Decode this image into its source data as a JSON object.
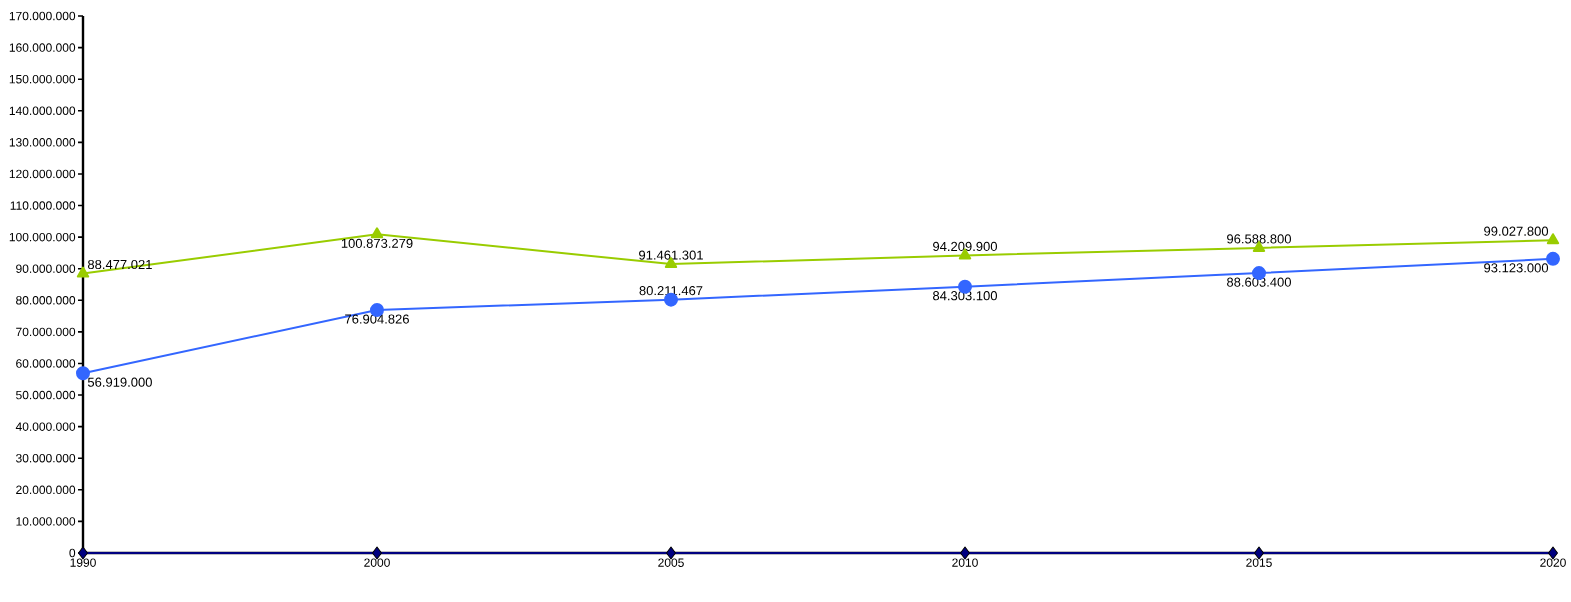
{
  "chart_data": {
    "type": "line",
    "categories": [
      "1990",
      "2000",
      "2005",
      "2010",
      "2015",
      "2020"
    ],
    "series": [
      {
        "color": "#99cc00",
        "marker": "triangle",
        "values": [
          88477021,
          100873279,
          91461301,
          94209900,
          96588800,
          99027800
        ],
        "value_labels": [
          "88.477.021",
          "100.873.279",
          "91.461.301",
          "94.209.900",
          "96.588.800",
          "99.027.800"
        ]
      },
      {
        "color": "#3366ff",
        "marker": "circle",
        "values": [
          56919000,
          76904826,
          80211467,
          84303100,
          88603400,
          93123000
        ],
        "value_labels": [
          "56.919.000",
          "76.904.826",
          "80.211.467",
          "84.303.100",
          "88.603.400",
          "93.123.000"
        ]
      },
      {
        "color": "#000080",
        "marker": "diamond",
        "values": [
          0,
          0,
          0,
          0,
          0,
          0
        ]
      }
    ],
    "ylim": [
      0,
      170000000
    ],
    "yticks": [
      0,
      {
        "value": 10000000,
        "label": "10.000.000"
      },
      {
        "value": 20000000,
        "label": "20.000.000"
      },
      {
        "value": 30000000,
        "label": "30.000.000"
      },
      {
        "value": 40000000,
        "label": "40.000.000"
      },
      {
        "value": 50000000,
        "label": "50.000.000"
      },
      {
        "value": 60000000,
        "label": "60.000.000"
      },
      {
        "value": 70000000,
        "label": "70.000.000"
      },
      {
        "value": 80000000,
        "label": "80.000.000"
      },
      {
        "value": 90000000,
        "label": "90.000.000"
      },
      {
        "value": 100000000,
        "label": "100.000.000"
      },
      {
        "value": 110000000,
        "label": "110.000.000"
      },
      {
        "value": 120000000,
        "label": "120.000.000"
      },
      {
        "value": 130000000,
        "label": "130.000.000"
      },
      {
        "value": 140000000,
        "label": "140.000.000"
      },
      {
        "value": 150000000,
        "label": "150.000.000"
      },
      {
        "value": 160000000,
        "label": "160.000.000"
      },
      {
        "value": 170000000,
        "label": "170.000.000"
      }
    ],
    "grid": false,
    "legend": false,
    "line_style": "solid"
  }
}
